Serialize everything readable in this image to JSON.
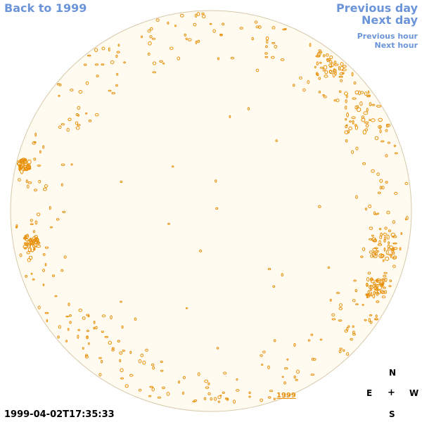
{
  "nav": {
    "back": "Back to 1999",
    "previous_day": "Previous day",
    "next_day": "Next day",
    "previous_hour": "Previous hour",
    "next_hour": "Next hour"
  },
  "compass": {
    "north": "N",
    "east": "E",
    "west": "W",
    "south": "S",
    "center": "+"
  },
  "timestamp": "1999-04-02T17:35:33",
  "year_label": "1999",
  "colors": {
    "link": "#6b95d8",
    "disk_fill": "#fffbf0",
    "disk_edge": "#d8c9aa",
    "contour": "#e8900a"
  }
}
